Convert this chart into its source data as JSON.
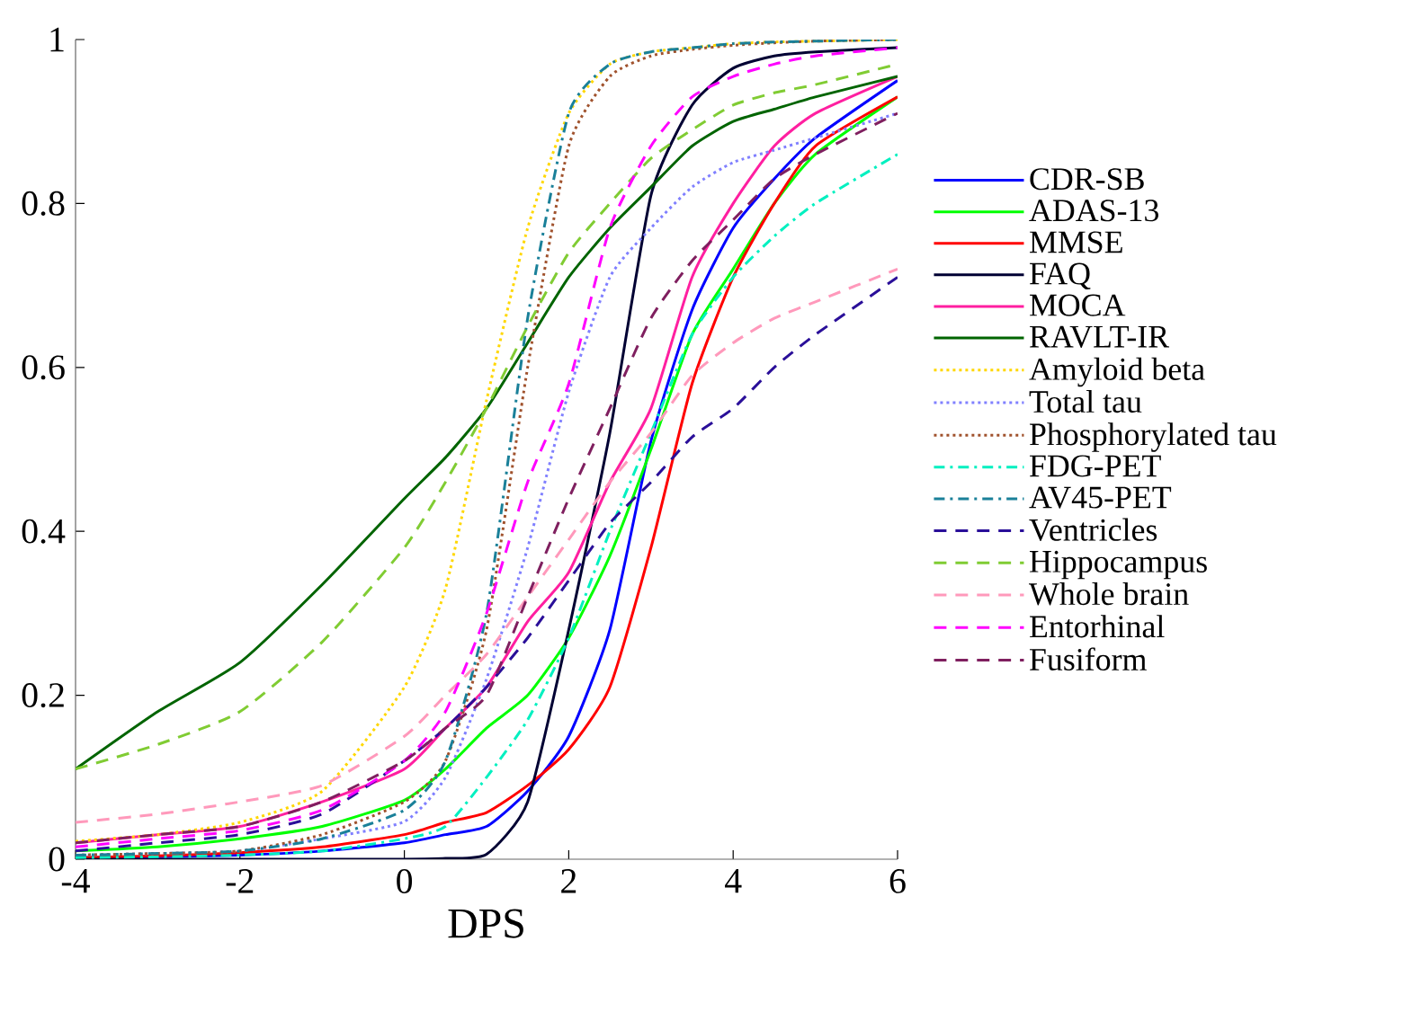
{
  "chart_data": {
    "type": "line",
    "xlabel": "DPS",
    "xlim": [
      -4,
      6
    ],
    "ylim": [
      0,
      1
    ],
    "xticks": [
      -4,
      -2,
      0,
      2,
      4,
      6
    ],
    "yticks": [
      0,
      0.2,
      0.4,
      0.6,
      0.8,
      1
    ],
    "legend": "right",
    "x": [
      -4,
      -3,
      -2,
      -1,
      0,
      0.5,
      1,
      1.5,
      2,
      2.5,
      3,
      3.5,
      4,
      4.5,
      5,
      6
    ],
    "series": [
      {
        "name": "CDR-SB",
        "color": "#0000ff",
        "line_style": "solid",
        "values": [
          0.002,
          0.003,
          0.005,
          0.01,
          0.02,
          0.03,
          0.04,
          0.083,
          0.15,
          0.28,
          0.51,
          0.67,
          0.77,
          0.83,
          0.88,
          0.95
        ]
      },
      {
        "name": "ADAS-13",
        "color": "#00ff00",
        "line_style": "solid",
        "values": [
          0.01,
          0.015,
          0.025,
          0.04,
          0.072,
          0.11,
          0.16,
          0.2,
          0.27,
          0.37,
          0.5,
          0.64,
          0.72,
          0.8,
          0.86,
          0.93
        ]
      },
      {
        "name": "MMSE",
        "color": "#ff0000",
        "line_style": "solid",
        "values": [
          0.002,
          0.004,
          0.008,
          0.015,
          0.03,
          0.045,
          0.057,
          0.09,
          0.134,
          0.21,
          0.38,
          0.58,
          0.71,
          0.8,
          0.87,
          0.93
        ]
      },
      {
        "name": "FAQ",
        "color": "#000033",
        "line_style": "solid",
        "values": [
          0,
          0,
          0,
          0,
          0,
          0.001,
          0.006,
          0.07,
          0.28,
          0.52,
          0.81,
          0.92,
          0.965,
          0.98,
          0.985,
          0.99
        ]
      },
      {
        "name": "MOCA",
        "color": "#ff1fa0",
        "line_style": "solid",
        "values": [
          0.02,
          0.03,
          0.04,
          0.07,
          0.11,
          0.16,
          0.21,
          0.29,
          0.35,
          0.46,
          0.55,
          0.71,
          0.8,
          0.87,
          0.91,
          0.955
        ]
      },
      {
        "name": "RAVLT-IR",
        "color": "#006400",
        "line_style": "solid",
        "values": [
          0.11,
          0.18,
          0.24,
          0.335,
          0.44,
          0.49,
          0.55,
          0.63,
          0.71,
          0.77,
          0.82,
          0.87,
          0.9,
          0.915,
          0.93,
          0.955
        ]
      },
      {
        "name": "Amyloid beta",
        "color": "#ffd700",
        "line_style": "dotted",
        "values": [
          0.022,
          0.03,
          0.045,
          0.083,
          0.21,
          0.33,
          0.56,
          0.77,
          0.91,
          0.97,
          0.985,
          0.99,
          0.995,
          0.997,
          0.998,
          1.0
        ]
      },
      {
        "name": "Total tau",
        "color": "#8080ff",
        "line_style": "dotted",
        "values": [
          0.005,
          0.007,
          0.01,
          0.025,
          0.046,
          0.1,
          0.22,
          0.38,
          0.57,
          0.71,
          0.77,
          0.82,
          0.85,
          0.865,
          0.88,
          0.91
        ]
      },
      {
        "name": "Phosphorylated tau",
        "color": "#a0522d",
        "line_style": "dotted",
        "values": [
          0.005,
          0.007,
          0.01,
          0.03,
          0.07,
          0.12,
          0.28,
          0.6,
          0.87,
          0.955,
          0.98,
          0.988,
          0.993,
          0.996,
          0.998,
          1.0
        ]
      },
      {
        "name": "FDG-PET",
        "color": "#00f0c0",
        "line_style": "dashdot",
        "values": [
          0.002,
          0.003,
          0.005,
          0.01,
          0.025,
          0.04,
          0.1,
          0.17,
          0.27,
          0.4,
          0.52,
          0.64,
          0.71,
          0.76,
          0.8,
          0.86
        ]
      },
      {
        "name": "AV45-PET",
        "color": "#1a8099",
        "line_style": "dashdot",
        "values": [
          0.005,
          0.007,
          0.01,
          0.025,
          0.06,
          0.12,
          0.3,
          0.66,
          0.91,
          0.97,
          0.985,
          0.99,
          0.995,
          0.997,
          0.998,
          1.0
        ]
      },
      {
        "name": "Ventricles",
        "color": "#2a0f99",
        "line_style": "dashed",
        "values": [
          0.01,
          0.02,
          0.03,
          0.055,
          0.12,
          0.16,
          0.21,
          0.27,
          0.34,
          0.41,
          0.46,
          0.515,
          0.55,
          0.6,
          0.64,
          0.71
        ]
      },
      {
        "name": "Hippocampus",
        "color": "#80cc33",
        "line_style": "dashed",
        "values": [
          0.11,
          0.14,
          0.18,
          0.265,
          0.38,
          0.46,
          0.55,
          0.65,
          0.74,
          0.8,
          0.855,
          0.89,
          0.92,
          0.935,
          0.945,
          0.97
        ]
      },
      {
        "name": "Whole brain",
        "color": "#ff99bb",
        "line_style": "dashed",
        "values": [
          0.045,
          0.055,
          0.07,
          0.09,
          0.15,
          0.2,
          0.25,
          0.32,
          0.39,
          0.46,
          0.52,
          0.59,
          0.63,
          0.66,
          0.68,
          0.72
        ]
      },
      {
        "name": "Entorhinal",
        "color": "#ff00ff",
        "line_style": "dashed",
        "values": [
          0.015,
          0.025,
          0.035,
          0.06,
          0.12,
          0.18,
          0.3,
          0.46,
          0.58,
          0.77,
          0.87,
          0.93,
          0.955,
          0.97,
          0.98,
          0.99
        ]
      },
      {
        "name": "Fusiform",
        "color": "#7f1f5f",
        "line_style": "dashed",
        "values": [
          0.02,
          0.03,
          0.04,
          0.07,
          0.12,
          0.16,
          0.2,
          0.32,
          0.44,
          0.55,
          0.66,
          0.73,
          0.78,
          0.83,
          0.86,
          0.91
        ]
      }
    ]
  }
}
